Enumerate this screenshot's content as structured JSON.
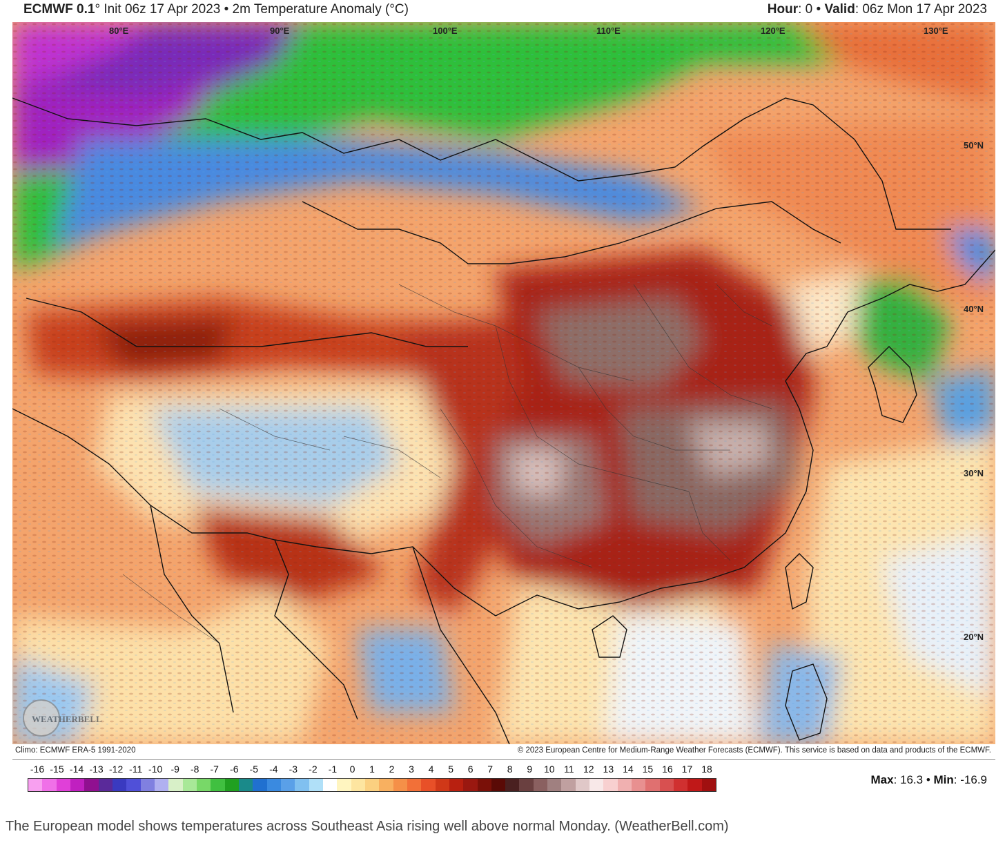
{
  "header": {
    "model": "ECMWF 0.1",
    "init": "° Init 06z 17 Apr 2023 • 2m Temperature Anomaly (°C)",
    "hour_label": "Hour",
    "hour_value": ": 0 • ",
    "valid_label": "Valid",
    "valid_value": ": 06z Mon 17 Apr 2023"
  },
  "map": {
    "longitude_labels": [
      "80°E",
      "90°E",
      "100°E",
      "110°E",
      "120°E",
      "130°E"
    ],
    "latitude_labels": [
      "50°N",
      "40°N",
      "30°N",
      "20°N"
    ],
    "logo": "WEATHERBELL",
    "colors": {
      "hot": "#c0341d",
      "very_hot": "#7a1a10",
      "extreme": "#8a6a64",
      "warm": "#f4a06a",
      "neutral": "#fde5b0",
      "cold": "#5aa0e0",
      "colder": "#2fbf3a",
      "coldest": "#a020c0"
    }
  },
  "footer": {
    "climo": "Climo: ECMWF ERA-5 1991-2020",
    "copyright": "© 2023 European Centre for Medium-Range Weather Forecasts (ECMWF). This service is based on data and products of the ECMWF."
  },
  "colorbar": {
    "labels": [
      "-16",
      "-15",
      "-14",
      "-13",
      "-12",
      "-11",
      "-10",
      "-9",
      "-8",
      "-7",
      "-6",
      "-5",
      "-4",
      "-3",
      "-2",
      "-1",
      "0",
      "1",
      "2",
      "3",
      "4",
      "5",
      "6",
      "7",
      "8",
      "9",
      "10",
      "11",
      "12",
      "13",
      "14",
      "15",
      "16",
      "17",
      "18"
    ],
    "colors": [
      "#f8a0f0",
      "#f070e8",
      "#e040d8",
      "#c020c0",
      "#901090",
      "#5a2a9a",
      "#3a3ac0",
      "#5050d8",
      "#8080e0",
      "#b0b0f0",
      "#d8f0c8",
      "#a8e898",
      "#78d868",
      "#40c040",
      "#20a020",
      "#1a8a8a",
      "#2070d0",
      "#3a8ae0",
      "#5aa0e8",
      "#80c0f0",
      "#b0e0f8",
      "#ffffff",
      "#fff5c0",
      "#fde5a0",
      "#fbd080",
      "#f8b060",
      "#f59048",
      "#f27038",
      "#e85028",
      "#d03818",
      "#b82010",
      "#9a1810",
      "#7a1008",
      "#5a0a06",
      "#4a2020",
      "#6a4040",
      "#8a6060",
      "#a08080",
      "#c0a0a0",
      "#e0c8c8",
      "#f8e8e8",
      "#f8d0d0",
      "#f0b0b0",
      "#e89090",
      "#e07070",
      "#d85050",
      "#d03030",
      "#c01818",
      "#a01010"
    ],
    "max_label": "Max",
    "max_value": ": 16.3 • ",
    "min_label": "Min",
    "min_value": ": -16.9"
  },
  "caption": "The European model shows temperatures across Southeast Asia rising well above normal Monday. (WeatherBell.com)"
}
